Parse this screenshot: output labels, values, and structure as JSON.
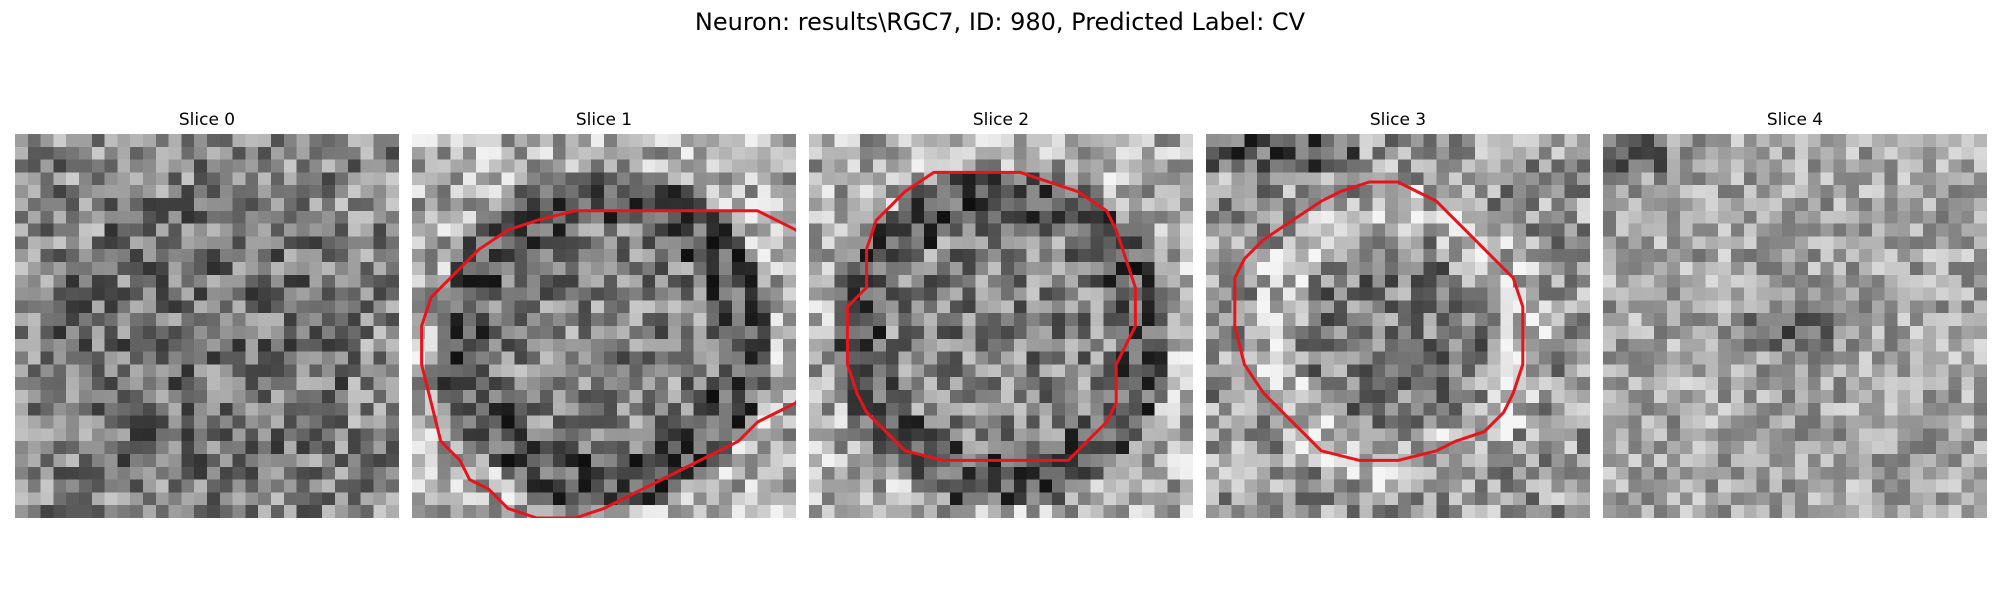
{
  "figure": {
    "title": "Neuron: results\\RGC7, ID: 980, Predicted Label: CV"
  },
  "colors": {
    "contour": "#e8141c",
    "background": "#ffffff"
  },
  "panels": [
    {
      "title": "Slice 0",
      "texture": "speckle",
      "contour": []
    },
    {
      "title": "Slice 1",
      "texture": "ring",
      "contour": [
        [
          8.5,
          4
        ],
        [
          18,
          4
        ],
        [
          19,
          4.5
        ],
        [
          20,
          5
        ],
        [
          20.5,
          5.6
        ],
        [
          21,
          6.5
        ],
        [
          21.5,
          7.5
        ],
        [
          21,
          8
        ],
        [
          21,
          12
        ],
        [
          20.5,
          13
        ],
        [
          20,
          14
        ],
        [
          19,
          14.5
        ],
        [
          18,
          15
        ],
        [
          17.5,
          15.5
        ],
        [
          17,
          16
        ],
        [
          16,
          16.5
        ],
        [
          15,
          17
        ],
        [
          14,
          17.5
        ],
        [
          13,
          18
        ],
        [
          12,
          18.5
        ],
        [
          11,
          19
        ],
        [
          10,
          19.5
        ],
        [
          8.5,
          20
        ],
        [
          6.5,
          20
        ],
        [
          5,
          19.5
        ],
        [
          4,
          18.5
        ],
        [
          3,
          18
        ],
        [
          2.5,
          17
        ],
        [
          1.5,
          16
        ],
        [
          1,
          14
        ],
        [
          0.5,
          12
        ],
        [
          0.5,
          10
        ],
        [
          1,
          8.5
        ],
        [
          2.5,
          7
        ],
        [
          3.5,
          6
        ],
        [
          5,
          5
        ],
        [
          6.5,
          4.5
        ]
      ]
    },
    {
      "title": "Slice 2",
      "texture": "ring",
      "contour": [
        [
          6.5,
          2
        ],
        [
          11,
          2
        ],
        [
          12.5,
          2.5
        ],
        [
          14,
          3
        ],
        [
          15.5,
          4
        ],
        [
          16,
          5
        ],
        [
          16.5,
          6.5
        ],
        [
          17,
          8
        ],
        [
          17,
          10
        ],
        [
          16.5,
          11
        ],
        [
          16,
          12
        ],
        [
          16,
          14
        ],
        [
          15.5,
          15
        ],
        [
          14.5,
          16
        ],
        [
          13.5,
          17
        ],
        [
          7,
          17
        ],
        [
          5,
          16.5
        ],
        [
          4,
          15.5
        ],
        [
          3,
          14.5
        ],
        [
          2.5,
          13.5
        ],
        [
          2,
          12
        ],
        [
          2,
          9
        ],
        [
          3,
          8
        ],
        [
          3,
          6
        ],
        [
          3.5,
          4.5
        ],
        [
          5,
          3
        ]
      ]
    },
    {
      "title": "Slice 3",
      "texture": "bright-ring",
      "contour": [
        [
          8.5,
          2.5
        ],
        [
          10,
          2.5
        ],
        [
          11,
          3
        ],
        [
          12,
          3.5
        ],
        [
          13,
          4.5
        ],
        [
          14,
          5.5
        ],
        [
          15,
          6.5
        ],
        [
          16,
          7.5
        ],
        [
          16.5,
          9
        ],
        [
          16.5,
          12
        ],
        [
          16,
          13.5
        ],
        [
          15.5,
          14.5
        ],
        [
          14.5,
          15.5
        ],
        [
          13,
          16
        ],
        [
          12,
          16.5
        ],
        [
          10,
          17
        ],
        [
          8,
          17
        ],
        [
          6,
          16.5
        ],
        [
          5,
          15.5
        ],
        [
          4,
          14.5
        ],
        [
          3,
          13.5
        ],
        [
          2,
          12
        ],
        [
          1.5,
          10
        ],
        [
          1.5,
          7.5
        ],
        [
          2,
          6.5
        ],
        [
          3,
          5.5
        ],
        [
          4.5,
          4.5
        ],
        [
          6,
          3.5
        ],
        [
          7,
          3
        ]
      ]
    },
    {
      "title": "Slice 4",
      "texture": "blob",
      "contour": []
    }
  ]
}
